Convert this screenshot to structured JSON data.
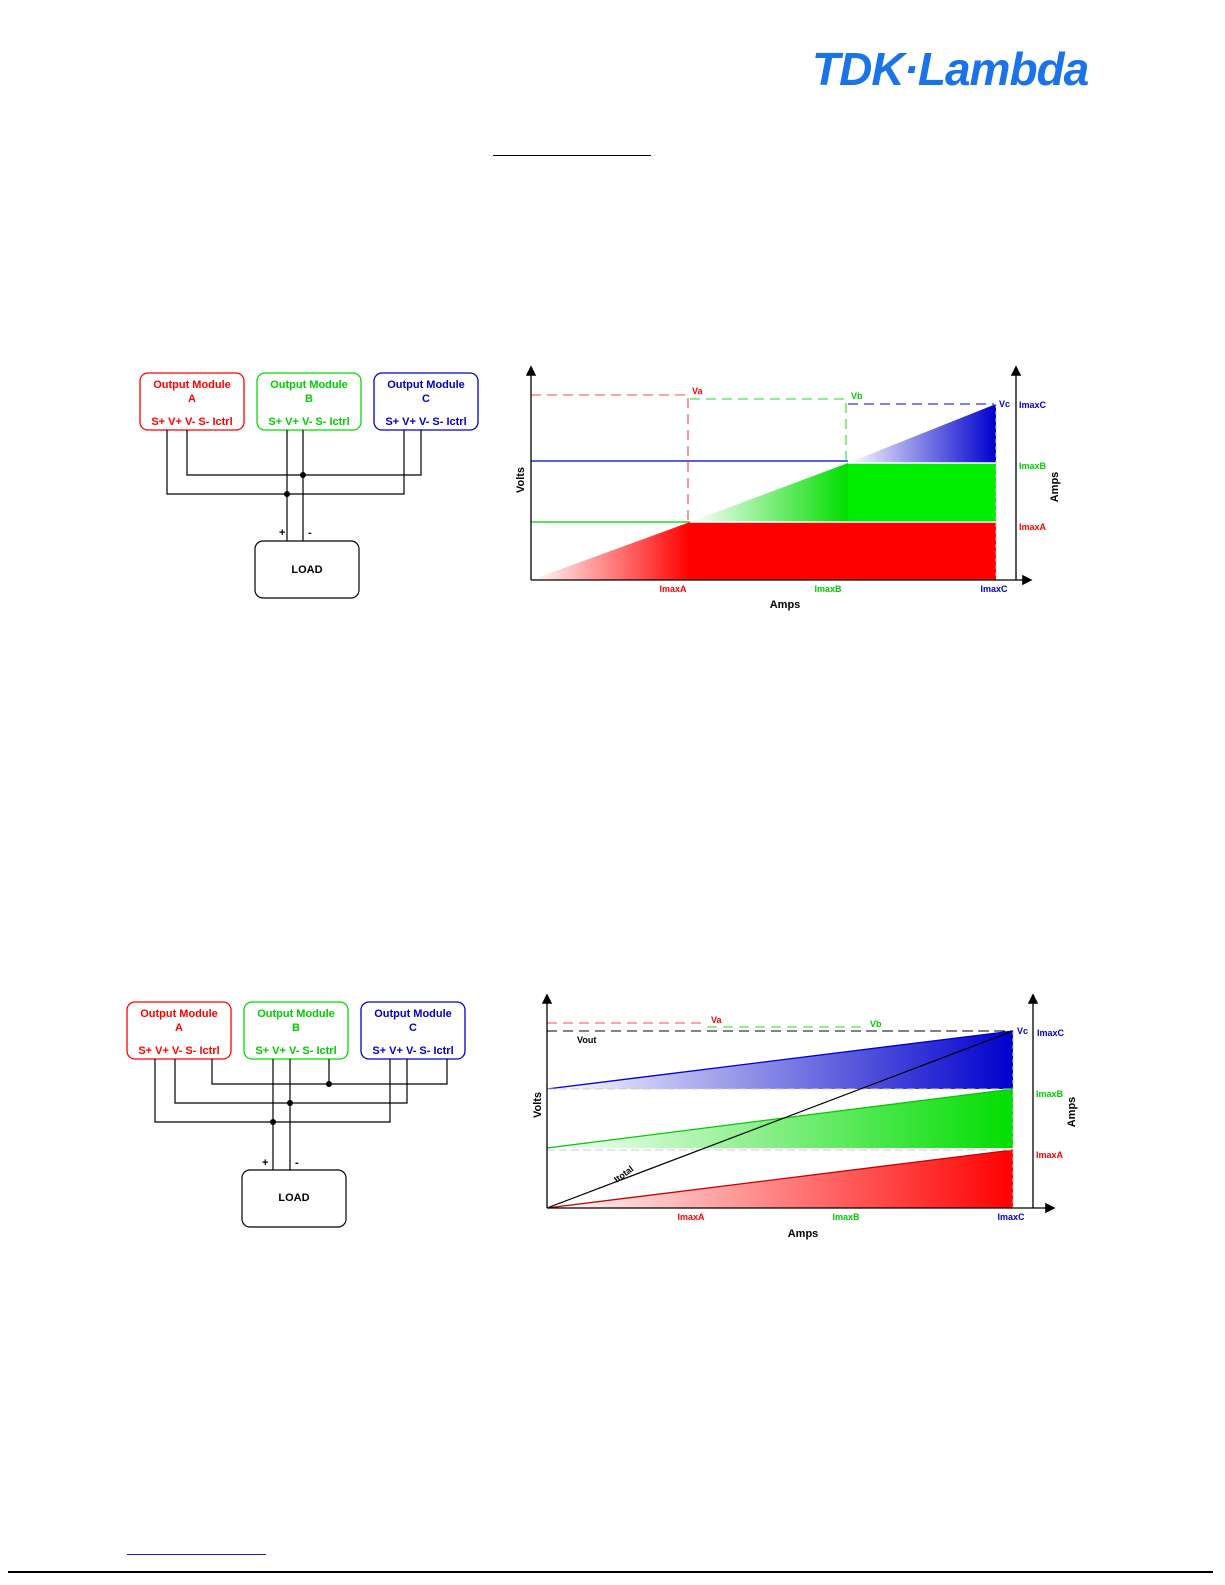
{
  "logo": {
    "text": "TDK·Lambda",
    "color": "#1a73e8"
  },
  "colors": {
    "a": "#ff0000",
    "b": "#00dd00",
    "c": "#0000cc",
    "wire": "#000000"
  },
  "module_labels": {
    "a": [
      "Output Module",
      "A"
    ],
    "b": [
      "Output Module",
      "B"
    ],
    "c": [
      "Output Module",
      "C"
    ],
    "pins": "S+ V+ V- S-  Ictrl"
  },
  "load_label": "LOAD",
  "plus": "+",
  "minus": "-",
  "graph1": {
    "x_axis_title": "Amps",
    "y_axis_title": "Volts",
    "y2_axis_title": "Amps",
    "x_ticks": [
      "ImaxA",
      "ImaxB",
      "ImaxC"
    ],
    "right_labels": [
      "ImaxC",
      "ImaxB",
      "ImaxA"
    ],
    "voltage_labels": [
      "Va",
      "Vb",
      "Vc"
    ]
  },
  "graph2": {
    "x_axis_title": "Amps",
    "y_axis_title": "Volts",
    "y2_axis_title": "Amps",
    "x_ticks": [
      "ImaxA",
      "ImaxB",
      "ImaxC"
    ],
    "right_labels": [
      "ImaxC",
      "ImaxB",
      "ImaxA"
    ],
    "voltage_labels": [
      "Va",
      "Vb",
      "Vc"
    ],
    "vout_label": "Vout",
    "itotal_label": "Itotal"
  }
}
